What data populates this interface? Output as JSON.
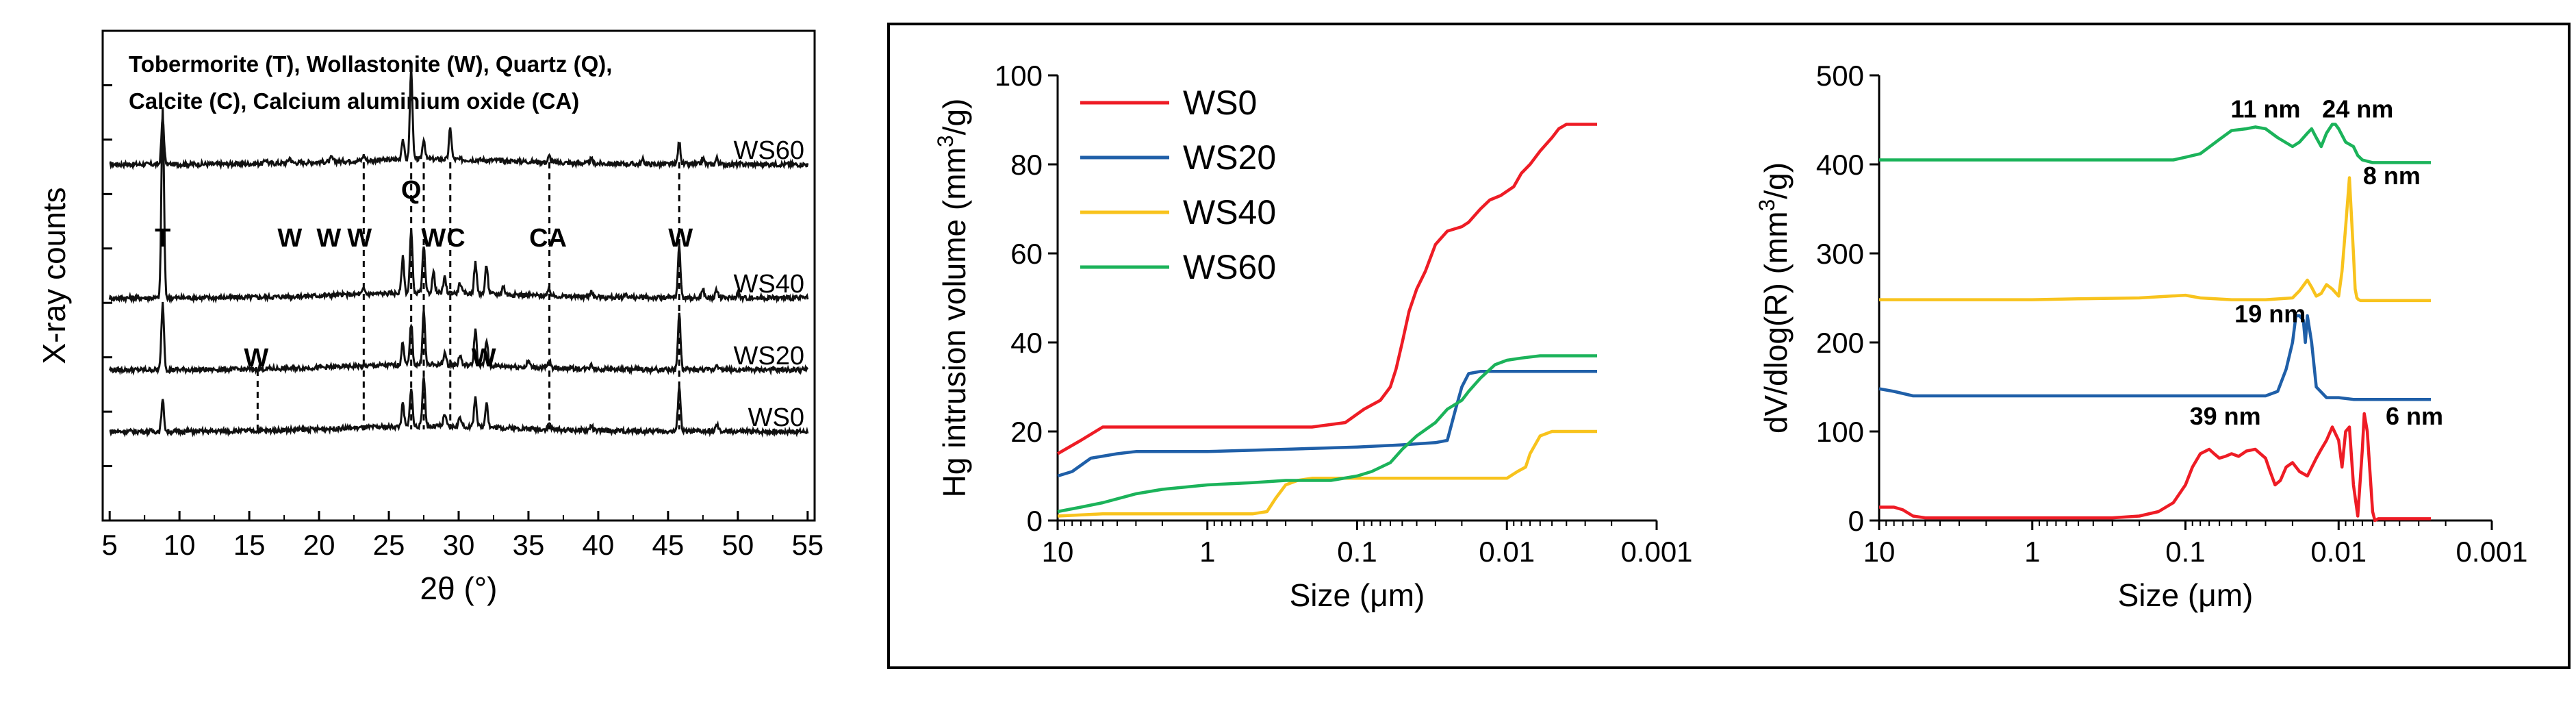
{
  "chart_data": [
    {
      "id": "xrd",
      "type": "line",
      "title": "",
      "xlabel": "2θ (°)",
      "ylabel": "X-ray counts",
      "xlim": [
        4.5,
        55.5
      ],
      "xticks": [
        5,
        10,
        15,
        20,
        25,
        30,
        35,
        40,
        45,
        50,
        55
      ],
      "legend_text": [
        "Tobermorite (T), Wollastonite (W), Quartz (Q),",
        "Calcite (C), Calcium aluminium oxide (CA)"
      ],
      "series": [
        {
          "name": "WS60",
          "baseline": 3.3,
          "peaks": [
            [
              8.8,
              0.45
            ],
            [
              16.2,
              0.04
            ],
            [
              17.9,
              0.05
            ],
            [
              20.9,
              0.04
            ],
            [
              23.2,
              0.05
            ],
            [
              26.0,
              0.2
            ],
            [
              26.6,
              0.88
            ],
            [
              27.5,
              0.2
            ],
            [
              29.4,
              0.3
            ],
            [
              36.5,
              0.06
            ],
            [
              39.5,
              0.04
            ],
            [
              43.2,
              0.04
            ],
            [
              45.8,
              0.22
            ],
            [
              47.5,
              0.06
            ],
            [
              48.5,
              0.06
            ]
          ]
        },
        {
          "name": "WS40",
          "baseline": 2.0,
          "peaks": [
            [
              8.8,
              1.85
            ],
            [
              23.2,
              0.05
            ],
            [
              26.0,
              0.35
            ],
            [
              26.6,
              0.6
            ],
            [
              27.5,
              0.45
            ],
            [
              28.2,
              0.2
            ],
            [
              29.0,
              0.15
            ],
            [
              30.1,
              0.1
            ],
            [
              31.2,
              0.3
            ],
            [
              32.0,
              0.28
            ],
            [
              33.2,
              0.08
            ],
            [
              36.5,
              0.06
            ],
            [
              39.5,
              0.06
            ],
            [
              42.0,
              0.04
            ],
            [
              45.8,
              0.5
            ],
            [
              47.5,
              0.08
            ],
            [
              48.5,
              0.08
            ],
            [
              50.0,
              0.05
            ]
          ]
        },
        {
          "name": "WS20",
          "baseline": 1.3,
          "peaks": [
            [
              8.8,
              0.65
            ],
            [
              26.0,
              0.22
            ],
            [
              26.6,
              0.4
            ],
            [
              27.5,
              0.52
            ],
            [
              29.0,
              0.12
            ],
            [
              30.1,
              0.1
            ],
            [
              31.2,
              0.35
            ],
            [
              32.0,
              0.25
            ],
            [
              35.0,
              0.06
            ],
            [
              36.5,
              0.06
            ],
            [
              39.5,
              0.05
            ],
            [
              45.8,
              0.55
            ],
            [
              48.5,
              0.06
            ]
          ]
        },
        {
          "name": "WS0",
          "baseline": 0.7,
          "peaks": [
            [
              8.8,
              0.3
            ],
            [
              26.0,
              0.22
            ],
            [
              26.6,
              0.38
            ],
            [
              27.5,
              0.5
            ],
            [
              29.0,
              0.12
            ],
            [
              30.1,
              0.1
            ],
            [
              31.2,
              0.3
            ],
            [
              32.0,
              0.25
            ],
            [
              36.5,
              0.06
            ],
            [
              39.5,
              0.05
            ],
            [
              45.8,
              0.45
            ],
            [
              48.5,
              0.06
            ]
          ]
        }
      ],
      "phase_markers": [
        {
          "label": "T",
          "x": 8.8
        },
        {
          "label": "W",
          "x": 17.9
        },
        {
          "label": "W",
          "x": 20.7
        },
        {
          "label": "W",
          "x": 22.9
        },
        {
          "label": "Q",
          "x": 26.6
        },
        {
          "label": "W",
          "x": 28.2
        },
        {
          "label": "C",
          "x": 29.8
        },
        {
          "label": "CA",
          "x": 36.4
        },
        {
          "label": "W",
          "x": 45.9
        },
        {
          "label": "W",
          "x": 15.5
        },
        {
          "label": "W",
          "x": 31.8
        }
      ],
      "dashed_lines_x": [
        15.6,
        23.2,
        26.6,
        27.5,
        29.4,
        36.5,
        45.8
      ]
    },
    {
      "id": "cumulative",
      "type": "line",
      "xscale": "log-reversed",
      "xlabel": "Size (μm)",
      "ylabel": "Hg intrusion volume (mm³/g)",
      "ylabel_parts": [
        "Hg intrusion volume (mm",
        "3",
        "/g)"
      ],
      "xlim": [
        10,
        0.001
      ],
      "ylim": [
        0,
        100
      ],
      "xtick_labels": [
        "10",
        "1",
        "0.1",
        "0.01",
        "0.001"
      ],
      "xtick_values": [
        10,
        1,
        0.1,
        0.01,
        0.001
      ],
      "ytick_values": [
        0,
        20,
        40,
        60,
        80,
        100
      ],
      "ytick_labels": [
        "0",
        "20",
        "40",
        "60",
        "80",
        "100"
      ],
      "legend": [
        "WS0",
        "WS20",
        "WS40",
        "WS60"
      ],
      "series": [
        {
          "name": "WS0",
          "color": "#ee1c25",
          "x": [
            10,
            7,
            5,
            3,
            1,
            0.3,
            0.2,
            0.12,
            0.09,
            0.07,
            0.06,
            0.055,
            0.05,
            0.045,
            0.04,
            0.035,
            0.03,
            0.025,
            0.02,
            0.018,
            0.015,
            0.013,
            0.011,
            0.009,
            0.008,
            0.007,
            0.006,
            0.005,
            0.0045,
            0.004,
            0.0035,
            0.0025
          ],
          "y": [
            15,
            18,
            21,
            21,
            21,
            21,
            21,
            22,
            25,
            27,
            30,
            34,
            40,
            47,
            52,
            56,
            62,
            65,
            66,
            67,
            70,
            72,
            73,
            75,
            78,
            80,
            83,
            86,
            88,
            89,
            89,
            89
          ]
        },
        {
          "name": "WS20",
          "color": "#1f5fa8",
          "x": [
            10,
            8,
            6,
            4,
            3,
            1,
            0.3,
            0.1,
            0.05,
            0.03,
            0.025,
            0.022,
            0.02,
            0.018,
            0.015,
            0.01,
            0.005,
            0.0025
          ],
          "y": [
            10,
            11,
            14,
            15,
            15.5,
            15.5,
            16,
            16.5,
            17,
            17.5,
            18,
            25,
            30,
            33,
            33.5,
            33.5,
            33.5,
            33.5
          ]
        },
        {
          "name": "WS40",
          "color": "#f8c31d",
          "x": [
            10,
            5,
            2,
            1,
            0.5,
            0.4,
            0.35,
            0.3,
            0.25,
            0.2,
            0.15,
            0.1,
            0.05,
            0.03,
            0.02,
            0.015,
            0.01,
            0.0085,
            0.0075,
            0.007,
            0.006,
            0.005,
            0.004,
            0.0025
          ],
          "y": [
            1,
            1.5,
            1.5,
            1.5,
            1.5,
            2,
            5,
            8,
            9,
            9.5,
            9.5,
            9.5,
            9.5,
            9.5,
            9.5,
            9.5,
            9.5,
            11,
            12,
            15,
            19,
            20,
            20,
            20
          ]
        },
        {
          "name": "WS60",
          "color": "#1bb35a",
          "x": [
            10,
            7,
            5,
            3,
            2,
            1,
            0.5,
            0.3,
            0.15,
            0.1,
            0.08,
            0.06,
            0.05,
            0.04,
            0.03,
            0.025,
            0.02,
            0.018,
            0.015,
            0.012,
            0.01,
            0.008,
            0.006,
            0.005,
            0.004,
            0.0025
          ],
          "y": [
            2,
            3,
            4,
            6,
            7,
            8,
            8.5,
            9,
            9,
            10,
            11,
            13,
            16,
            19,
            22,
            25,
            27,
            29,
            32,
            35,
            36,
            36.5,
            37,
            37,
            37,
            37
          ]
        }
      ]
    },
    {
      "id": "differential",
      "type": "line",
      "xscale": "log-reversed",
      "xlabel": "Size (μm)",
      "ylabel": "dV/dlog(R) (mm³/g)",
      "ylabel_parts": [
        "dV/dlog(R) (mm",
        "3",
        "/g)"
      ],
      "xlim": [
        10,
        0.001
      ],
      "ylim": [
        0,
        500
      ],
      "xtick_labels": [
        "10",
        "1",
        "0.1",
        "0.01",
        "0.001"
      ],
      "xtick_values": [
        10,
        1,
        0.1,
        0.01,
        0.001
      ],
      "ytick_values": [
        0,
        100,
        200,
        300,
        400,
        500
      ],
      "ytick_labels": [
        "0",
        "100",
        "200",
        "300",
        "400",
        "500"
      ],
      "annotations": [
        {
          "text": "11 nm",
          "x": 0.03,
          "y": 445
        },
        {
          "text": "24 nm",
          "x": 0.0075,
          "y": 445
        },
        {
          "text": "8 nm",
          "x": 0.0045,
          "y": 370
        },
        {
          "text": "19 nm",
          "x": 0.028,
          "y": 215
        },
        {
          "text": "39 nm",
          "x": 0.055,
          "y": 100
        },
        {
          "text": "6 nm",
          "x": 0.0032,
          "y": 100
        }
      ],
      "series": [
        {
          "name": "WS0",
          "color": "#ee1c25",
          "x": [
            10,
            8,
            7,
            6,
            5,
            3,
            1,
            0.5,
            0.3,
            0.2,
            0.15,
            0.12,
            0.1,
            0.09,
            0.08,
            0.07,
            0.065,
            0.06,
            0.055,
            0.05,
            0.045,
            0.04,
            0.035,
            0.03,
            0.028,
            0.026,
            0.024,
            0.022,
            0.02,
            0.018,
            0.016,
            0.014,
            0.013,
            0.012,
            0.011,
            0.01,
            0.0095,
            0.009,
            0.0085,
            0.008,
            0.0075,
            0.007,
            0.0068,
            0.0065,
            0.006,
            0.0058,
            0.0055,
            0.005,
            0.004,
            0.0025
          ],
          "y": [
            15,
            15,
            12,
            5,
            3,
            3,
            3,
            3,
            3,
            5,
            10,
            20,
            40,
            60,
            75,
            80,
            75,
            70,
            72,
            75,
            72,
            78,
            80,
            70,
            55,
            40,
            45,
            60,
            65,
            55,
            50,
            70,
            80,
            90,
            105,
            90,
            60,
            100,
            105,
            40,
            5,
            80,
            120,
            100,
            10,
            0,
            2,
            2,
            2,
            2
          ]
        },
        {
          "name": "WS20",
          "color": "#1f5fa8",
          "x": [
            10,
            8,
            6,
            3,
            1,
            0.3,
            0.1,
            0.05,
            0.03,
            0.025,
            0.022,
            0.02,
            0.019,
            0.018,
            0.017,
            0.0165,
            0.016,
            0.015,
            0.014,
            0.012,
            0.01,
            0.008,
            0.005,
            0.0025
          ],
          "y": [
            148,
            145,
            140,
            140,
            140,
            140,
            140,
            140,
            140,
            145,
            170,
            200,
            230,
            230,
            225,
            200,
            230,
            200,
            150,
            138,
            138,
            136,
            136,
            136
          ]
        },
        {
          "name": "WS40",
          "color": "#f8c31d",
          "x": [
            10,
            5,
            2,
            1,
            0.5,
            0.2,
            0.1,
            0.08,
            0.05,
            0.03,
            0.02,
            0.018,
            0.016,
            0.015,
            0.014,
            0.013,
            0.012,
            0.011,
            0.01,
            0.0095,
            0.009,
            0.0085,
            0.008,
            0.0078,
            0.0076,
            0.0074,
            0.0072,
            0.007,
            0.005,
            0.0025
          ],
          "y": [
            248,
            248,
            248,
            248,
            249,
            250,
            253,
            250,
            248,
            248,
            250,
            258,
            270,
            262,
            252,
            255,
            265,
            260,
            252,
            280,
            330,
            385,
            300,
            260,
            250,
            248,
            247,
            247,
            247,
            247
          ]
        },
        {
          "name": "WS60",
          "color": "#1bb35a",
          "x": [
            10,
            5,
            2,
            1,
            0.5,
            0.2,
            0.12,
            0.1,
            0.08,
            0.06,
            0.05,
            0.04,
            0.035,
            0.03,
            0.025,
            0.02,
            0.018,
            0.016,
            0.015,
            0.014,
            0.013,
            0.012,
            0.011,
            0.0105,
            0.01,
            0.009,
            0.008,
            0.0075,
            0.007,
            0.006,
            0.005,
            0.004,
            0.0025
          ],
          "y": [
            405,
            405,
            405,
            405,
            405,
            405,
            405,
            408,
            412,
            428,
            438,
            440,
            442,
            440,
            430,
            420,
            425,
            435,
            440,
            430,
            420,
            435,
            445,
            445,
            440,
            425,
            420,
            410,
            405,
            402,
            402,
            402,
            402
          ]
        }
      ]
    }
  ]
}
